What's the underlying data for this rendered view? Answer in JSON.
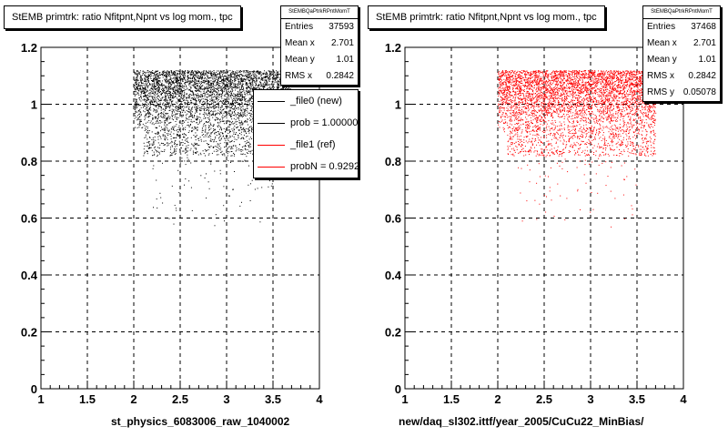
{
  "colors": {
    "file0": "#000000",
    "file1": "#ff0000"
  },
  "chart_data": [
    {
      "type": "scatter",
      "title": "StEMB primtrk: ratio Nfitpnt,Npnt vs log mom., tpc",
      "xlabel": "st_physics_6083006_raw_1040002",
      "ylabel": "",
      "xlim": [
        1,
        4
      ],
      "ylim": [
        0,
        1.2
      ],
      "x_ticks": [
        "1",
        "1.5",
        "2",
        "2.5",
        "3",
        "3.5",
        "4"
      ],
      "y_ticks": [
        "0",
        "0.2",
        "0.4",
        "0.6",
        "0.8",
        "1",
        "1.2"
      ],
      "grid": true,
      "marker_color": "#000000",
      "stats": {
        "name": "StEMBQaPtrkRPntMomT",
        "rows": [
          {
            "label": "Entries",
            "value": "37593"
          },
          {
            "label": "Mean x",
            "value": "2.701"
          },
          {
            "label": "Mean y",
            "value": "1.01"
          },
          {
            "label": "RMS x",
            "value": "0.2842"
          }
        ]
      },
      "legend": {
        "placement": "right",
        "entries": [
          {
            "label": "_file0 (new)",
            "color": "#000000"
          },
          {
            "label": "prob = 1.000000",
            "color": "#000000"
          },
          {
            "label": "_file1 (ref)",
            "color": "#ff0000"
          },
          {
            "label": "probN = 0.929237",
            "color": "#ff0000"
          }
        ]
      },
      "density": {
        "x_range": [
          2.0,
          3.7
        ],
        "core_y": [
          0.9,
          1.12
        ],
        "tail_y": [
          0.55,
          0.9
        ]
      }
    },
    {
      "type": "scatter",
      "title": "StEMB primtrk: ratio Nfitpnt,Npnt vs log mom., tpc",
      "xlabel": "new/daq_sl302.ittf/year_2005/CuCu22_MinBias/",
      "ylabel": "",
      "xlim": [
        1,
        4
      ],
      "ylim": [
        0,
        1.2
      ],
      "x_ticks": [
        "1",
        "1.5",
        "2",
        "2.5",
        "3",
        "3.5",
        "4"
      ],
      "y_ticks": [
        "0",
        "0.2",
        "0.4",
        "0.6",
        "0.8",
        "1",
        "1.2"
      ],
      "grid": true,
      "marker_color": "#ff0000",
      "stats": {
        "name": "StEMBQaPtrkRPntMomT",
        "rows": [
          {
            "label": "Entries",
            "value": "37468"
          },
          {
            "label": "Mean x",
            "value": "2.701"
          },
          {
            "label": "Mean y",
            "value": "1.01"
          },
          {
            "label": "RMS x",
            "value": "0.2842"
          },
          {
            "label": "RMS y",
            "value": "0.05078"
          }
        ]
      },
      "density": {
        "x_range": [
          2.0,
          3.7
        ],
        "core_y": [
          0.9,
          1.12
        ],
        "tail_y": [
          0.55,
          0.9
        ]
      }
    }
  ]
}
